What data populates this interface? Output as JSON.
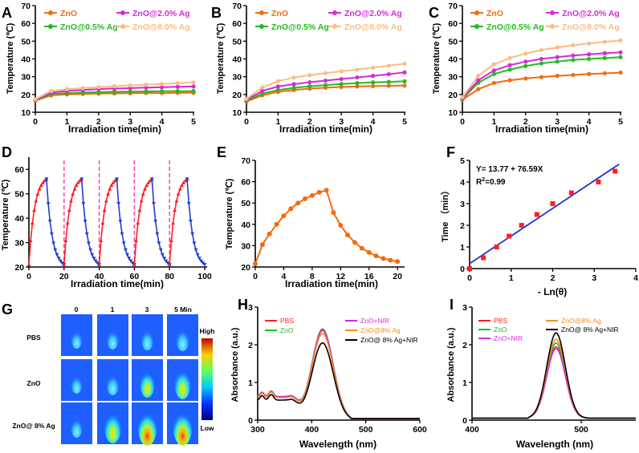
{
  "colors": {
    "zno": "#f26b0f",
    "zno05": "#22bb22",
    "zno2": "#d62ad8",
    "zno8": "#f9bd86",
    "red": "#ff1f1f",
    "blue": "#1f3fd0",
    "pink": "#ff33aa",
    "black": "#000000",
    "fitline": "#2233cc",
    "markerF": "#ff2020"
  },
  "heat_panels": [
    {
      "letter": "A",
      "ylabel": "Temperature (℃)",
      "xlabel": "Irradiation time(min)",
      "xticks": [
        "0",
        "1",
        "2",
        "3",
        "4",
        "5"
      ],
      "yticks": [
        "10",
        "20",
        "30",
        "40",
        "50",
        "60",
        "70"
      ],
      "legend": [
        "ZnO",
        "ZnO@0.5% Ag",
        "ZnO@2.0% Ag",
        "ZnO@8.0% Ag"
      ]
    },
    {
      "letter": "B",
      "ylabel": "Temperature (℃)",
      "xlabel": "Irradiation time(min)",
      "xticks": [
        "0",
        "1",
        "2",
        "3",
        "4",
        "5"
      ],
      "yticks": [
        "10",
        "20",
        "30",
        "40",
        "50",
        "60",
        "70"
      ],
      "legend": [
        "ZnO",
        "ZnO@0.5% Ag",
        "ZnO@2.0% Ag",
        "ZnO@8.0% Ag"
      ]
    },
    {
      "letter": "C",
      "ylabel": "Temperature (℃)",
      "xlabel": "Irradiation time(min)",
      "xticks": [
        "0",
        "1",
        "2",
        "3",
        "4",
        "5"
      ],
      "yticks": [
        "10",
        "20",
        "30",
        "40",
        "50",
        "60",
        "70"
      ],
      "legend": [
        "ZnO",
        "ZnO@0.5% Ag",
        "ZnO@2.0% Ag",
        "ZnO@8.0% Ag"
      ]
    }
  ],
  "panel_d": {
    "letter": "D",
    "ylabel": "Temperature (℃)",
    "xlabel": "Irradiation time(min)",
    "xticks": [
      "0",
      "20",
      "40",
      "60",
      "80",
      "100"
    ],
    "yticks": [
      "20",
      "30",
      "40",
      "50",
      "60"
    ]
  },
  "panel_e": {
    "letter": "E",
    "ylabel": "Temperature (℃)",
    "xlabel": "Irradiation time(min)",
    "xticks": [
      "0",
      "4",
      "8",
      "12",
      "16",
      "20"
    ],
    "yticks": [
      "20",
      "30",
      "40",
      "50",
      "60",
      "70"
    ]
  },
  "panel_f": {
    "letter": "F",
    "ylabel": "Time （min）",
    "xlabel": "- Ln(θ)",
    "xticks": [
      "0",
      "1",
      "2",
      "3",
      "4"
    ],
    "yticks": [
      "0",
      "1",
      "2",
      "3",
      "4",
      "5"
    ],
    "eq1": "Y= 13.77 + 76.59X",
    "eq2a": "R",
    "eq2sup": "2",
    "eq2b": "=0.99"
  },
  "panel_g": {
    "letter": "G",
    "cols": [
      "0",
      "1",
      "3",
      "5 Min"
    ],
    "rows": [
      "PBS",
      "ZnO",
      "ZnO@ 8% Ag"
    ],
    "cb_high": "High",
    "cb_low": "Low"
  },
  "panel_h": {
    "letter": "H",
    "ylabel": "Absorbance (a.u.)",
    "xlabel": "Wavelength (nm)",
    "xticks": [
      "300",
      "400",
      "500",
      "600"
    ],
    "yticks": [
      "0",
      "1",
      "2",
      "3"
    ],
    "legend": [
      "PBS",
      "ZnO",
      "ZnO+NIR",
      "ZnO@8% Ag",
      "ZnO@ 8% Ag+NIR"
    ]
  },
  "panel_i": {
    "letter": "I",
    "ylabel": "Absorbance (a.u.)",
    "xlabel": "Wavelength (nm)",
    "xticks": [
      "400",
      "500"
    ],
    "yticks": [
      "0",
      "1",
      "2",
      "3"
    ],
    "legend": [
      "PBS",
      "ZnO",
      "ZnO+NIR",
      "ZnO@8% Ag",
      "ZnO@ 8% Ag+NIR"
    ]
  },
  "chart_data": [
    {
      "panel": "A",
      "type": "line",
      "title": "",
      "xlabel": "Irradiation time(min)",
      "ylabel": "Temperature (℃)",
      "xlim": [
        0,
        5
      ],
      "ylim": [
        10,
        70
      ],
      "x": [
        0,
        0.5,
        1,
        1.5,
        2,
        2.5,
        3,
        3.5,
        4,
        4.5,
        5
      ],
      "series": [
        {
          "name": "ZnO",
          "values": [
            16.5,
            19.5,
            20,
            20.3,
            20.5,
            20.6,
            20.7,
            20.8,
            20.8,
            20.9,
            20.9
          ]
        },
        {
          "name": "ZnO@0.5% Ag",
          "values": [
            16.8,
            20.2,
            20.8,
            21.1,
            21.3,
            21.5,
            21.6,
            21.7,
            21.8,
            21.9,
            21.9
          ]
        },
        {
          "name": "ZnO@2.0% Ag",
          "values": [
            17,
            21,
            22,
            22.5,
            23,
            23.3,
            23.6,
            23.9,
            24.1,
            24.3,
            24.5
          ]
        },
        {
          "name": "ZnO@8.0% Ag",
          "values": [
            17.3,
            22,
            23,
            23.6,
            24.1,
            24.6,
            25.1,
            25.5,
            25.9,
            26.4,
            26.8
          ]
        }
      ]
    },
    {
      "panel": "B",
      "type": "line",
      "title": "",
      "xlabel": "Irradiation time(min)",
      "ylabel": "Temperature (℃)",
      "xlim": [
        0,
        5
      ],
      "ylim": [
        10,
        70
      ],
      "x": [
        0,
        0.5,
        1,
        1.5,
        2,
        2.5,
        3,
        3.5,
        4,
        4.5,
        5
      ],
      "series": [
        {
          "name": "ZnO",
          "values": [
            16,
            19.5,
            21.5,
            22.5,
            23.3,
            23.8,
            24.2,
            24.5,
            24.7,
            24.9,
            25
          ]
        },
        {
          "name": "ZnO@0.5% Ag",
          "values": [
            16.5,
            20.5,
            22.5,
            23.7,
            24.6,
            25.3,
            25.9,
            26.4,
            26.8,
            27.1,
            27.4
          ]
        },
        {
          "name": "ZnO@2.0% Ag",
          "values": [
            17,
            22,
            24.5,
            25.8,
            26.9,
            27.8,
            28.7,
            29.6,
            30.5,
            31.4,
            32.4
          ]
        },
        {
          "name": "ZnO@8.0% Ag",
          "values": [
            17.5,
            24,
            27.5,
            29.5,
            30.9,
            32,
            33,
            34,
            35.1,
            36.2,
            37.3
          ]
        }
      ]
    },
    {
      "panel": "C",
      "type": "line",
      "title": "",
      "xlabel": "Irradiation time(min)",
      "ylabel": "Temperature (℃)",
      "xlim": [
        0,
        5
      ],
      "ylim": [
        10,
        70
      ],
      "x": [
        0,
        0.5,
        1,
        1.5,
        2,
        2.5,
        3,
        3.5,
        4,
        4.5,
        5
      ],
      "series": [
        {
          "name": "ZnO",
          "values": [
            17,
            23,
            26.5,
            28,
            29,
            29.8,
            30.5,
            31,
            31.5,
            31.9,
            32.3
          ]
        },
        {
          "name": "ZnO@0.5% Ag",
          "values": [
            17.5,
            26.5,
            31.5,
            34,
            36,
            37.5,
            38.5,
            39.4,
            40,
            40.5,
            41
          ]
        },
        {
          "name": "ZnO@2.0% Ag",
          "values": [
            18,
            28,
            33.5,
            36.5,
            38.5,
            40,
            41,
            41.9,
            42.6,
            43.2,
            43.7
          ]
        },
        {
          "name": "ZnO@8.0% Ag",
          "values": [
            18.5,
            30.5,
            37,
            40.5,
            43,
            45,
            46.5,
            47.7,
            48.7,
            49.6,
            50.4
          ]
        }
      ]
    },
    {
      "panel": "D",
      "type": "line",
      "title": "",
      "xlabel": "Irradiation time(min)",
      "ylabel": "Temperature (℃)",
      "xlim": [
        0,
        100
      ],
      "ylim": [
        20,
        65
      ],
      "cycles": 5,
      "heating_minutes": 10,
      "cooling_minutes": 10,
      "min_temp": 21,
      "max_temp": 56,
      "dashed_lines_at": [
        20,
        40,
        60,
        80
      ],
      "series": [
        {
          "name": "heating",
          "color": "red"
        },
        {
          "name": "cooling",
          "color": "blue"
        }
      ]
    },
    {
      "panel": "E",
      "type": "line",
      "title": "",
      "xlabel": "Irradiation time(min)",
      "ylabel": "Temperature (℃)",
      "xlim": [
        0,
        21
      ],
      "ylim": [
        20,
        70
      ],
      "x": [
        0,
        1,
        2,
        3,
        4,
        5,
        6,
        7,
        8,
        9,
        10,
        11,
        12,
        13,
        14,
        15,
        16,
        17,
        18,
        19,
        20
      ],
      "values": [
        21.5,
        30.5,
        35.5,
        40,
        44,
        47.3,
        50,
        52,
        53.5,
        55,
        56,
        45.5,
        39.5,
        35,
        31.5,
        28.8,
        26.8,
        25.2,
        24,
        23.2,
        22.6
      ]
    },
    {
      "panel": "F",
      "type": "scatter",
      "title": "",
      "xlabel": "- Ln(θ)",
      "ylabel": "Time （min）",
      "xlim": [
        0,
        4
      ],
      "ylim": [
        0,
        5
      ],
      "x": [
        0,
        0.33,
        0.65,
        0.95,
        1.25,
        1.62,
        2,
        2.45,
        3.1,
        3.5
      ],
      "values": [
        0,
        0.5,
        1,
        1.5,
        2,
        2.5,
        3,
        3.5,
        4,
        4.5
      ],
      "fit": {
        "intercept_min": 0.2295,
        "slope_min": 1.2765,
        "label": "Y= 13.77 + 76.59X",
        "r2": 0.99
      }
    },
    {
      "panel": "H",
      "type": "line",
      "title": "",
      "xlabel": "Wavelength (nm)",
      "ylabel": "Absorbance (a.u.)",
      "xlim": [
        300,
        600
      ],
      "ylim": [
        0,
        3
      ],
      "peak_nm": 420,
      "series": [
        {
          "name": "PBS",
          "peak": 2.38
        },
        {
          "name": "ZnO",
          "peak": 2.42
        },
        {
          "name": "ZnO+NIR",
          "peak": 2.4
        },
        {
          "name": "ZnO@8% Ag",
          "peak": 2.3
        },
        {
          "name": "ZnO@ 8% Ag+NIR",
          "peak": 2.05
        }
      ]
    },
    {
      "panel": "I",
      "type": "line",
      "title": "",
      "xlabel": "Wavelength (nm)",
      "ylabel": "Absorbance (a.u.)",
      "xlim": [
        400,
        550
      ],
      "ylim": [
        0,
        3
      ],
      "peak_nm": 477,
      "series": [
        {
          "name": "PBS",
          "peak": 1.9
        },
        {
          "name": "ZnO",
          "peak": 2.0
        },
        {
          "name": "ZnO+NIR",
          "peak": 1.85
        },
        {
          "name": "ZnO@8% Ag",
          "peak": 2.1
        },
        {
          "name": "ZnO@ 8% Ag+NIR",
          "peak": 2.27
        }
      ]
    }
  ]
}
